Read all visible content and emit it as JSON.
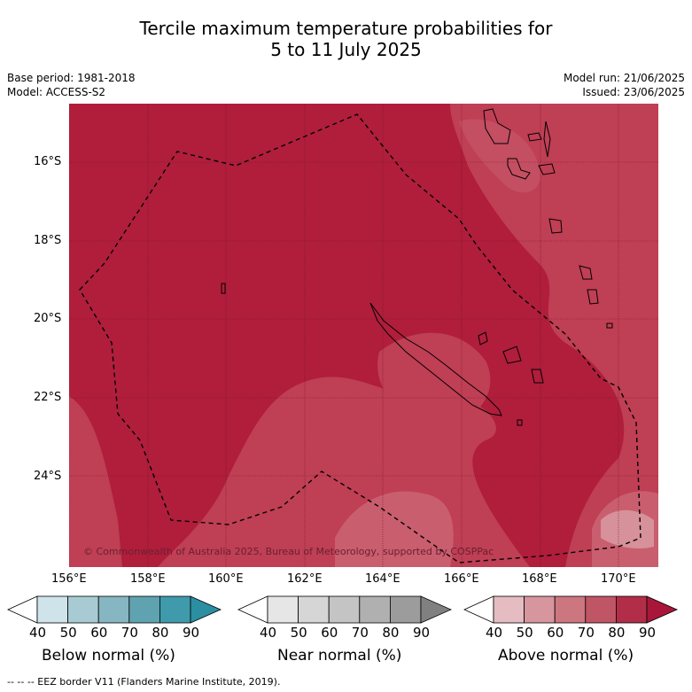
{
  "title_line1": "Tercile maximum temperature probabilities for",
  "title_line2": "5 to 11 July 2025",
  "base_period": "Base period: 1981-2018",
  "model": "Model: ACCESS-S2",
  "model_run": "Model run: 21/06/2025",
  "issued": "Issued: 23/06/2025",
  "lat_labels": [
    "16°S",
    "18°S",
    "20°S",
    "22°S",
    "24°S"
  ],
  "lon_labels": [
    "156°E",
    "158°E",
    "160°E",
    "162°E",
    "164°E",
    "166°E",
    "168°E",
    "170°E"
  ],
  "copyright": "© Commonwealth of Australia 2025, Bureau of Meteorology, supported by COSPPac",
  "colorbars": [
    {
      "label": "Below normal (%)",
      "ticks": [
        "40",
        "50",
        "60",
        "70",
        "80",
        "90"
      ],
      "colors": [
        "#ffffff",
        "#cfe4ea",
        "#a8cbd3",
        "#85b6c1",
        "#5fa3b0",
        "#3f9aab",
        "#2b8ea1"
      ]
    },
    {
      "label": "Near normal (%)",
      "ticks": [
        "40",
        "50",
        "60",
        "70",
        "80",
        "90"
      ],
      "colors": [
        "#ffffff",
        "#e6e6e6",
        "#d6d6d6",
        "#c4c4c4",
        "#b0b0b0",
        "#9c9c9c",
        "#808080"
      ]
    },
    {
      "label": "Above normal (%)",
      "ticks": [
        "40",
        "50",
        "60",
        "70",
        "80",
        "90"
      ],
      "colors": [
        "#ffffff",
        "#e4bcc2",
        "#d7959e",
        "#cc7680",
        "#c05566",
        "#b22e48",
        "#a8173a"
      ]
    }
  ],
  "footer": "--  --  -- EEZ border V11 (Flanders Marine Institute, 2019)."
}
